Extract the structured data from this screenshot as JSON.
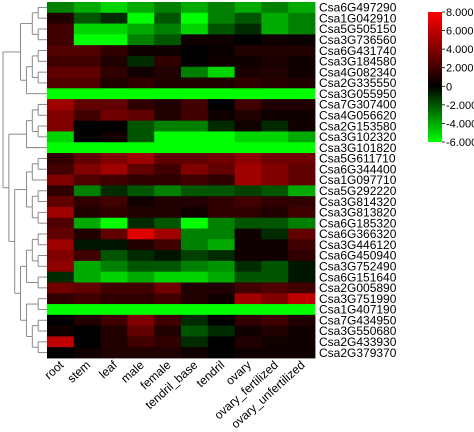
{
  "chart_data": {
    "type": "heatmap",
    "title": "",
    "xlabel": "",
    "ylabel": "",
    "columns": [
      "root",
      "stem",
      "leaf",
      "male",
      "female",
      "tendril_base",
      "tendril",
      "ovary",
      "ovary_fertilized",
      "ovary_unfertilized"
    ],
    "rows": [
      "Csa6G497290",
      "Csa1G042910",
      "Csa5G505150",
      "Csa3G736560",
      "Csa6G431740",
      "Csa3G184580",
      "Csa4G082340",
      "Csa2G335550",
      "Csa3G055950",
      "Csa7G307400",
      "Csa4G056620",
      "Csa2G153580",
      "Csa3G102320",
      "Csa3G101820",
      "Csa5G611710",
      "Csa6G344400",
      "Csa1G097710",
      "Csa5G292220",
      "Csa3G814320",
      "Csa3G813820",
      "Csa6G185320",
      "Csa6G366320",
      "Csa3G446120",
      "Csa6G450940",
      "Csa3G752490",
      "Csa6G151640",
      "Csa2G005890",
      "Csa3G751990",
      "Csa1G407190",
      "Csa7G434950",
      "Csa3G550680",
      "Csa2G433930",
      "Csa2G379370"
    ],
    "values": [
      [
        -3.0,
        -4.0,
        -5.0,
        -4.0,
        -3.0,
        -4.0,
        -3.0,
        -4.0,
        -3.0,
        -4.0
      ],
      [
        1.0,
        -2.0,
        -1.0,
        -6.0,
        -2.0,
        -6.0,
        -3.0,
        -2.0,
        -4.0,
        -3.0
      ],
      [
        2.0,
        -5.0,
        -5.0,
        -4.0,
        -3.0,
        -5.0,
        -2.0,
        -1.0,
        -4.0,
        -3.0
      ],
      [
        2.0,
        -6.0,
        -6.0,
        -3.0,
        -2.0,
        0.5,
        0.5,
        0.0,
        0.5,
        0.3
      ],
      [
        2.5,
        2.5,
        1.5,
        0.5,
        0.5,
        0.0,
        0.3,
        1.0,
        1.0,
        1.0
      ],
      [
        2.0,
        2.0,
        1.0,
        -1.0,
        1.5,
        0.0,
        0.5,
        0.5,
        0.8,
        0.5
      ],
      [
        3.0,
        3.0,
        1.5,
        0.5,
        1.0,
        -3.0,
        -5.0,
        0.8,
        1.0,
        0.5
      ],
      [
        2.5,
        2.5,
        1.0,
        1.5,
        1.0,
        1.0,
        1.0,
        1.5,
        1.2,
        1.0
      ],
      [
        -6.0,
        -6.0,
        -6.0,
        -6.0,
        -6.0,
        -6.0,
        -6.0,
        -6.0,
        -6.0,
        -6.0
      ],
      [
        5.0,
        3.0,
        3.0,
        1.5,
        1.0,
        2.0,
        0.0,
        2.0,
        1.0,
        1.0
      ],
      [
        4.0,
        2.0,
        3.5,
        3.0,
        1.0,
        2.0,
        0.5,
        1.0,
        0.5,
        0.5
      ],
      [
        4.0,
        0.0,
        0.0,
        -2.0,
        -3.0,
        -3.0,
        -1.0,
        0.5,
        -1.0,
        0.5
      ],
      [
        -5.0,
        0.0,
        0.5,
        -2.0,
        -6.0,
        -6.0,
        -6.0,
        -5.0,
        -5.0,
        -4.0
      ],
      [
        -6.0,
        -6.0,
        -6.0,
        -6.0,
        -6.0,
        -6.0,
        -6.0,
        -6.0,
        -6.0,
        -6.0
      ],
      [
        1.5,
        3.0,
        4.0,
        5.0,
        3.0,
        3.0,
        3.5,
        4.5,
        3.5,
        3.5
      ],
      [
        2.0,
        4.0,
        5.0,
        3.0,
        2.0,
        4.0,
        3.0,
        5.0,
        4.0,
        3.0
      ],
      [
        4.0,
        2.5,
        2.0,
        1.5,
        1.5,
        2.0,
        1.5,
        5.0,
        4.0,
        3.0
      ],
      [
        1.5,
        -3.0,
        -1.0,
        -2.0,
        -3.0,
        -2.0,
        -2.0,
        -1.5,
        -2.0,
        -4.0
      ],
      [
        3.0,
        1.5,
        2.0,
        0.5,
        1.0,
        1.0,
        1.5,
        2.0,
        1.5,
        1.5
      ],
      [
        5.0,
        1.0,
        1.5,
        1.0,
        1.0,
        0.5,
        1.5,
        1.5,
        1.0,
        2.0
      ],
      [
        2.5,
        -4.0,
        -6.0,
        -1.0,
        -2.0,
        -6.0,
        -3.0,
        -2.0,
        -2.0,
        -3.0
      ],
      [
        3.0,
        1.0,
        3.0,
        7.0,
        5.0,
        -3.0,
        -3.0,
        0.5,
        -1.0,
        3.0
      ],
      [
        5.0,
        -0.5,
        -0.5,
        1.0,
        2.0,
        -3.0,
        -4.0,
        0.5,
        0.5,
        2.0
      ],
      [
        4.0,
        2.0,
        -2.0,
        -1.0,
        -0.5,
        -1.5,
        -1.0,
        0.5,
        0.5,
        1.5
      ],
      [
        4.5,
        -4.0,
        -3.0,
        -2.0,
        -2.0,
        -3.0,
        -3.5,
        -1.0,
        -2.0,
        -0.5
      ],
      [
        -1.0,
        -4.0,
        -5.0,
        -4.0,
        -5.0,
        -5.0,
        -4.0,
        -2.0,
        -2.0,
        -0.5
      ],
      [
        3.5,
        3.0,
        2.0,
        2.0,
        3.5,
        1.0,
        1.0,
        2.0,
        2.5,
        2.0
      ],
      [
        1.5,
        2.0,
        1.5,
        1.5,
        2.0,
        1.0,
        0.5,
        5.0,
        4.0,
        6.0
      ],
      [
        -6.0,
        -6.0,
        -6.0,
        -6.0,
        -6.0,
        -6.0,
        -6.0,
        -6.0,
        -6.0,
        -6.0
      ],
      [
        0.0,
        1.0,
        2.0,
        4.0,
        2.0,
        -1.0,
        0.0,
        1.5,
        2.0,
        1.0
      ],
      [
        0.5,
        0.0,
        1.0,
        3.0,
        1.0,
        -2.0,
        -1.0,
        0.5,
        1.0,
        0.5
      ],
      [
        6.0,
        0.0,
        1.0,
        2.0,
        1.5,
        -1.0,
        0.0,
        1.0,
        0.5,
        0.5
      ],
      [
        0.0,
        0.5,
        1.0,
        1.0,
        1.0,
        0.5,
        0.0,
        0.5,
        0.5,
        0.5
      ]
    ],
    "color_scale": {
      "min": -6,
      "max": 8,
      "low_color": "#00ff00",
      "mid_color": "#000000",
      "high_color": "#ff0000",
      "tick_labels": [
        "8.000",
        "6.000",
        "4.000",
        "2.000",
        "0",
        "-2.000",
        "-4.000",
        "-6.000"
      ],
      "tick_values": [
        8,
        6,
        4,
        2,
        0,
        -2,
        -4,
        -6
      ]
    },
    "dendrogram": "rows",
    "legend": "right",
    "grid": false
  }
}
